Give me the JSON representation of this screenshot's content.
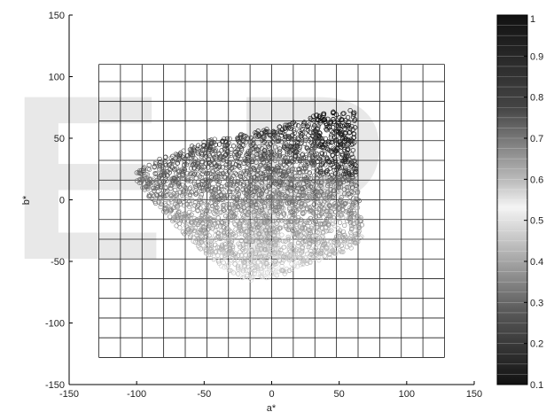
{
  "chart_data": {
    "type": "scatter",
    "title": "",
    "xlabel": "a*",
    "ylabel": "b*",
    "xlim": [
      -150,
      150
    ],
    "ylim": [
      -150,
      150
    ],
    "x_ticks": [
      -150,
      -100,
      -50,
      0,
      50,
      100,
      150
    ],
    "y_ticks": [
      -150,
      -100,
      -50,
      0,
      50,
      100,
      150
    ],
    "x_tick_labels": [
      "-150",
      "-100",
      "-50",
      "0",
      "50",
      "100",
      "150"
    ],
    "y_tick_labels": [
      "-150",
      "-100",
      "-50",
      "0",
      "50",
      "100",
      "150"
    ],
    "marker": "open-circle",
    "grid_region": {
      "a_min": -128,
      "a_max": 128,
      "b_min": -128,
      "b_max": 110
    },
    "grid_a_lines": [
      -128,
      -112,
      -96,
      -80,
      -64,
      -48,
      -32,
      -16,
      0,
      16,
      32,
      48,
      64,
      80,
      96,
      112,
      128
    ],
    "grid_b_lines": [
      -128,
      -112,
      -96,
      -80,
      -64,
      -48,
      -32,
      -16,
      0,
      16,
      32,
      48,
      64,
      80,
      96,
      110
    ],
    "point_cloud_outline": [
      [
        -100,
        22
      ],
      [
        -95,
        26
      ],
      [
        -85,
        32
      ],
      [
        -70,
        40
      ],
      [
        -55,
        46
      ],
      [
        -40,
        50
      ],
      [
        -25,
        53
      ],
      [
        -10,
        56
      ],
      [
        5,
        60
      ],
      [
        20,
        64
      ],
      [
        35,
        70
      ],
      [
        45,
        72
      ],
      [
        52,
        70
      ],
      [
        58,
        74
      ],
      [
        62,
        70
      ],
      [
        62,
        40
      ],
      [
        64,
        15
      ],
      [
        66,
        -10
      ],
      [
        68,
        -30
      ],
      [
        65,
        -35
      ],
      [
        55,
        -42
      ],
      [
        40,
        -48
      ],
      [
        25,
        -52
      ],
      [
        10,
        -60
      ],
      [
        -5,
        -64
      ],
      [
        -15,
        -66
      ],
      [
        -25,
        -62
      ],
      [
        -40,
        -52
      ],
      [
        -55,
        -38
      ],
      [
        -70,
        -22
      ],
      [
        -85,
        -5
      ],
      [
        -95,
        8
      ],
      [
        -100,
        15
      ]
    ],
    "colorbar": {
      "min": 0.1,
      "max": 1,
      "tick_labels": [
        "1",
        "0.9",
        "0.8",
        "0.7",
        "0.6",
        "0.5",
        "0.4",
        "0.3",
        "0.2",
        "0.1"
      ],
      "color_low": "#111111",
      "color_mid": "#f2f2f2",
      "color_high": "#111111"
    },
    "watermark_text": "E P"
  }
}
